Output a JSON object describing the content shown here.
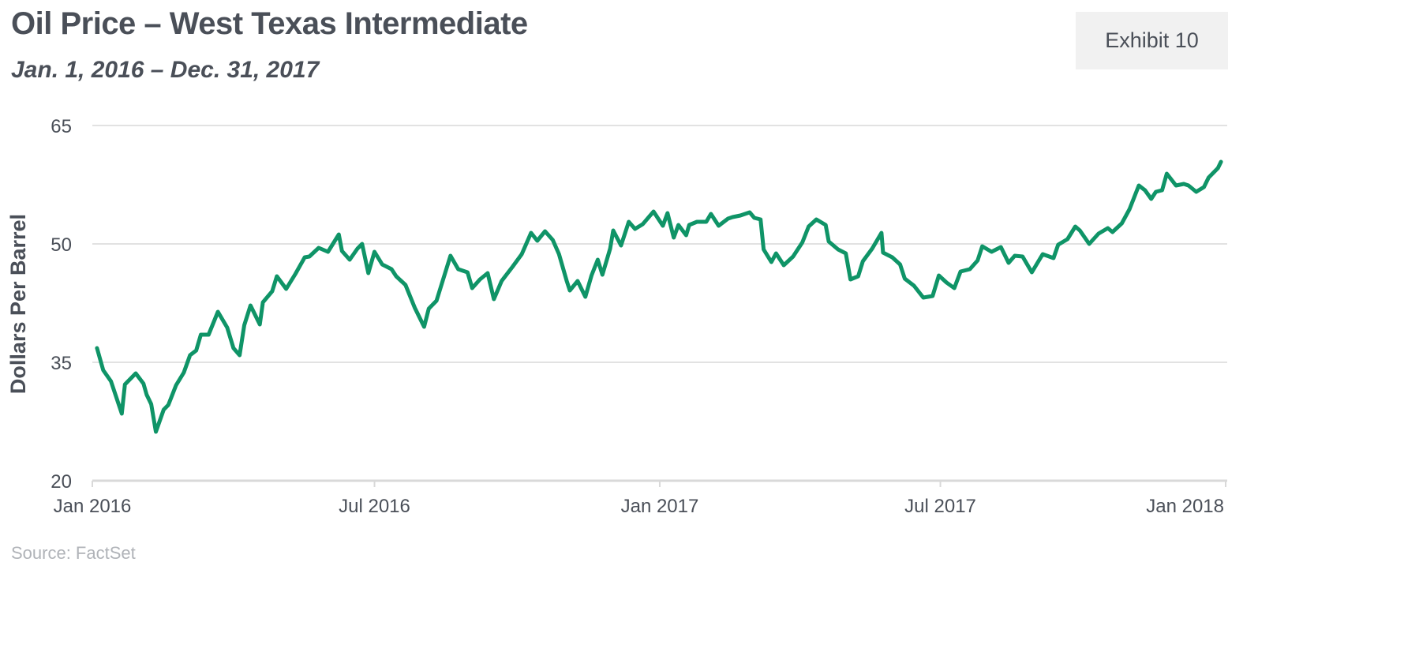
{
  "header": {
    "title": "Oil Price – West Texas Intermediate",
    "subtitle": "Jan. 1, 2016 – Dec. 31, 2017",
    "exhibit_label": "Exhibit 10"
  },
  "footer": {
    "source": "Source: FactSet"
  },
  "colors": {
    "line": "#0f9467",
    "grid": "#e2e2e2",
    "axis": "#d9d9d9",
    "text": "#4a4f58",
    "source_text": "#b0b3b8",
    "exhibit_bg": "#f1f1f1"
  },
  "chart_data": {
    "type": "line",
    "title": "Oil Price – West Texas Intermediate",
    "subtitle": "Jan. 1, 2016 – Dec. 31, 2017",
    "xlabel": "",
    "ylabel": "Dollars Per Barrel",
    "ylim": [
      20,
      65
    ],
    "xlim": [
      "2016-01-01",
      "2018-01-01"
    ],
    "y_ticks": [
      20,
      35,
      50,
      65
    ],
    "y_tick_labels": [
      "20",
      "35",
      "50",
      "65"
    ],
    "x_ticks": [
      "2016-01-01",
      "2016-07-01",
      "2017-01-01",
      "2017-07-01",
      "2018-01-01"
    ],
    "x_tick_labels": [
      "Jan 2016",
      "Jul 2016",
      "Jan 2017",
      "Jul 2017",
      "Jan 2018"
    ],
    "grid": "horizontal",
    "legend": "none",
    "series": [
      {
        "values": [
          [
            "2016-01-04",
            36.8
          ],
          [
            "2016-01-08",
            34.0
          ],
          [
            "2016-01-13",
            32.6
          ],
          [
            "2016-01-20",
            28.5
          ],
          [
            "2016-01-22",
            32.2
          ],
          [
            "2016-01-29",
            33.6
          ],
          [
            "2016-02-03",
            32.3
          ],
          [
            "2016-02-05",
            30.9
          ],
          [
            "2016-02-08",
            29.7
          ],
          [
            "2016-02-11",
            26.2
          ],
          [
            "2016-02-16",
            29.0
          ],
          [
            "2016-02-19",
            29.6
          ],
          [
            "2016-02-24",
            32.1
          ],
          [
            "2016-02-29",
            33.7
          ],
          [
            "2016-03-04",
            35.9
          ],
          [
            "2016-03-08",
            36.5
          ],
          [
            "2016-03-11",
            38.5
          ],
          [
            "2016-03-16",
            38.5
          ],
          [
            "2016-03-22",
            41.4
          ],
          [
            "2016-03-28",
            39.4
          ],
          [
            "2016-04-01",
            36.8
          ],
          [
            "2016-04-05",
            35.9
          ],
          [
            "2016-04-08",
            39.7
          ],
          [
            "2016-04-12",
            42.2
          ],
          [
            "2016-04-18",
            39.8
          ],
          [
            "2016-04-20",
            42.6
          ],
          [
            "2016-04-26",
            44.0
          ],
          [
            "2016-04-29",
            45.9
          ],
          [
            "2016-05-05",
            44.3
          ],
          [
            "2016-05-11",
            46.2
          ],
          [
            "2016-05-17",
            48.3
          ],
          [
            "2016-05-20",
            48.4
          ],
          [
            "2016-05-26",
            49.5
          ],
          [
            "2016-06-01",
            49.0
          ],
          [
            "2016-06-08",
            51.2
          ],
          [
            "2016-06-10",
            49.1
          ],
          [
            "2016-06-15",
            48.0
          ],
          [
            "2016-06-20",
            49.4
          ],
          [
            "2016-06-23",
            50.0
          ],
          [
            "2016-06-27",
            46.3
          ],
          [
            "2016-07-01",
            49.0
          ],
          [
            "2016-07-06",
            47.4
          ],
          [
            "2016-07-12",
            46.8
          ],
          [
            "2016-07-15",
            45.9
          ],
          [
            "2016-07-21",
            44.8
          ],
          [
            "2016-07-27",
            41.9
          ],
          [
            "2016-08-02",
            39.5
          ],
          [
            "2016-08-05",
            41.8
          ],
          [
            "2016-08-10",
            42.8
          ],
          [
            "2016-08-16",
            46.6
          ],
          [
            "2016-08-19",
            48.5
          ],
          [
            "2016-08-24",
            46.8
          ],
          [
            "2016-08-30",
            46.4
          ],
          [
            "2016-09-02",
            44.4
          ],
          [
            "2016-09-07",
            45.5
          ],
          [
            "2016-09-12",
            46.3
          ],
          [
            "2016-09-16",
            43.0
          ],
          [
            "2016-09-21",
            45.3
          ],
          [
            "2016-09-28",
            47.1
          ],
          [
            "2016-10-04",
            48.7
          ],
          [
            "2016-10-10",
            51.4
          ],
          [
            "2016-10-14",
            50.4
          ],
          [
            "2016-10-19",
            51.6
          ],
          [
            "2016-10-24",
            50.5
          ],
          [
            "2016-10-28",
            48.7
          ],
          [
            "2016-11-02",
            45.3
          ],
          [
            "2016-11-04",
            44.1
          ],
          [
            "2016-11-09",
            45.3
          ],
          [
            "2016-11-14",
            43.3
          ],
          [
            "2016-11-18",
            46.0
          ],
          [
            "2016-11-22",
            48.0
          ],
          [
            "2016-11-25",
            46.1
          ],
          [
            "2016-11-30",
            49.4
          ],
          [
            "2016-12-02",
            51.7
          ],
          [
            "2016-12-07",
            49.8
          ],
          [
            "2016-12-12",
            52.8
          ],
          [
            "2016-12-16",
            51.9
          ],
          [
            "2016-12-21",
            52.5
          ],
          [
            "2016-12-28",
            54.1
          ],
          [
            "2017-01-03",
            52.3
          ],
          [
            "2017-01-06",
            53.9
          ],
          [
            "2017-01-10",
            50.8
          ],
          [
            "2017-01-13",
            52.4
          ],
          [
            "2017-01-18",
            51.1
          ],
          [
            "2017-01-20",
            52.4
          ],
          [
            "2017-01-25",
            52.8
          ],
          [
            "2017-01-31",
            52.8
          ],
          [
            "2017-02-03",
            53.8
          ],
          [
            "2017-02-08",
            52.3
          ],
          [
            "2017-02-14",
            53.2
          ],
          [
            "2017-02-17",
            53.4
          ],
          [
            "2017-02-22",
            53.6
          ],
          [
            "2017-02-28",
            54.0
          ],
          [
            "2017-03-03",
            53.3
          ],
          [
            "2017-03-07",
            53.1
          ],
          [
            "2017-03-09",
            49.3
          ],
          [
            "2017-03-14",
            47.7
          ],
          [
            "2017-03-17",
            48.8
          ],
          [
            "2017-03-22",
            47.3
          ],
          [
            "2017-03-28",
            48.4
          ],
          [
            "2017-04-03",
            50.2
          ],
          [
            "2017-04-07",
            52.2
          ],
          [
            "2017-04-12",
            53.1
          ],
          [
            "2017-04-18",
            52.4
          ],
          [
            "2017-04-20",
            50.3
          ],
          [
            "2017-04-26",
            49.3
          ],
          [
            "2017-05-01",
            48.8
          ],
          [
            "2017-05-04",
            45.5
          ],
          [
            "2017-05-09",
            45.9
          ],
          [
            "2017-05-12",
            47.8
          ],
          [
            "2017-05-18",
            49.4
          ],
          [
            "2017-05-24",
            51.4
          ],
          [
            "2017-05-25",
            48.9
          ],
          [
            "2017-05-31",
            48.3
          ],
          [
            "2017-06-05",
            47.4
          ],
          [
            "2017-06-08",
            45.6
          ],
          [
            "2017-06-14",
            44.7
          ],
          [
            "2017-06-20",
            43.2
          ],
          [
            "2017-06-26",
            43.4
          ],
          [
            "2017-06-30",
            46.0
          ],
          [
            "2017-07-05",
            45.1
          ],
          [
            "2017-07-10",
            44.4
          ],
          [
            "2017-07-14",
            46.5
          ],
          [
            "2017-07-20",
            46.8
          ],
          [
            "2017-07-25",
            47.9
          ],
          [
            "2017-07-28",
            49.7
          ],
          [
            "2017-08-03",
            49.0
          ],
          [
            "2017-08-09",
            49.6
          ],
          [
            "2017-08-14",
            47.6
          ],
          [
            "2017-08-18",
            48.5
          ],
          [
            "2017-08-23",
            48.4
          ],
          [
            "2017-08-29",
            46.4
          ],
          [
            "2017-09-05",
            48.7
          ],
          [
            "2017-09-12",
            48.2
          ],
          [
            "2017-09-15",
            49.9
          ],
          [
            "2017-09-21",
            50.6
          ],
          [
            "2017-09-26",
            52.2
          ],
          [
            "2017-09-29",
            51.7
          ],
          [
            "2017-10-05",
            50.0
          ],
          [
            "2017-10-11",
            51.3
          ],
          [
            "2017-10-17",
            52.0
          ],
          [
            "2017-10-20",
            51.5
          ],
          [
            "2017-10-26",
            52.6
          ],
          [
            "2017-10-31",
            54.4
          ],
          [
            "2017-11-06",
            57.4
          ],
          [
            "2017-11-10",
            56.8
          ],
          [
            "2017-11-14",
            55.7
          ],
          [
            "2017-11-17",
            56.6
          ],
          [
            "2017-11-21",
            56.8
          ],
          [
            "2017-11-24",
            58.9
          ],
          [
            "2017-11-30",
            57.4
          ],
          [
            "2017-12-05",
            57.6
          ],
          [
            "2017-12-08",
            57.4
          ],
          [
            "2017-12-13",
            56.6
          ],
          [
            "2017-12-18",
            57.2
          ],
          [
            "2017-12-21",
            58.4
          ],
          [
            "2017-12-27",
            59.6
          ],
          [
            "2017-12-29",
            60.4
          ]
        ]
      }
    ]
  }
}
